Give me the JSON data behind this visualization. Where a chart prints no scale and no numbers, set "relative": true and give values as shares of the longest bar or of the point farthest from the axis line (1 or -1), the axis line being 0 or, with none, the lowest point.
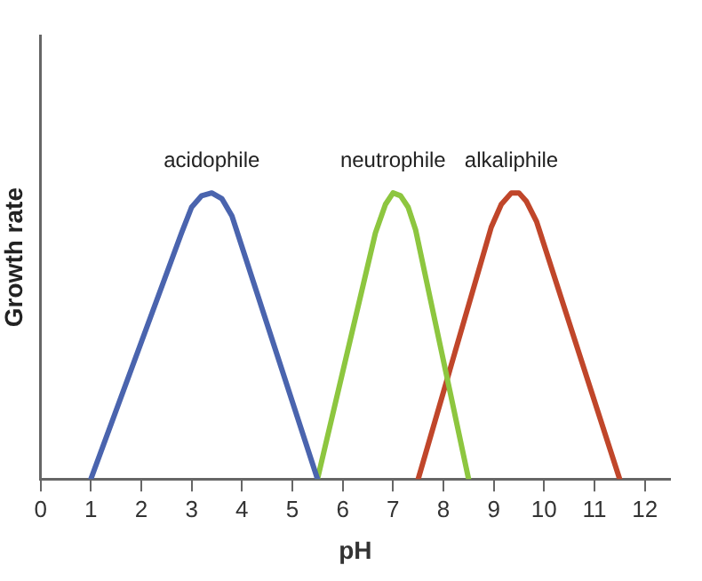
{
  "chart_data": {
    "type": "line",
    "xlabel": "pH",
    "ylabel": "Growth rate",
    "relative": true,
    "xlim": [
      0,
      12.5
    ],
    "xticks": [
      0,
      1,
      2,
      3,
      4,
      5,
      6,
      7,
      8,
      9,
      10,
      11,
      12
    ],
    "grid": false,
    "legend": false,
    "marker": "none",
    "line_style": "solid",
    "series": [
      {
        "name": "acidophile",
        "color": "#4a64ae",
        "x": [
          1,
          2.8,
          3,
          3.2,
          3.4,
          3.6,
          3.8,
          5.5
        ],
        "values": [
          0,
          0.86,
          0.95,
          0.99,
          1,
          0.98,
          0.92,
          0
        ]
      },
      {
        "name": "neutrophile",
        "color": "#8dc63f",
        "x": [
          5.5,
          6.65,
          6.85,
          7,
          7.15,
          7.3,
          7.45,
          8.5
        ],
        "values": [
          0,
          0.86,
          0.96,
          1,
          0.99,
          0.95,
          0.87,
          0
        ]
      },
      {
        "name": "alkaliphile",
        "color": "#c0462a",
        "x": [
          7.5,
          8.95,
          9.15,
          9.35,
          9.5,
          9.65,
          9.85,
          11.5
        ],
        "values": [
          0,
          0.88,
          0.96,
          1,
          1,
          0.97,
          0.9,
          0
        ]
      }
    ]
  }
}
